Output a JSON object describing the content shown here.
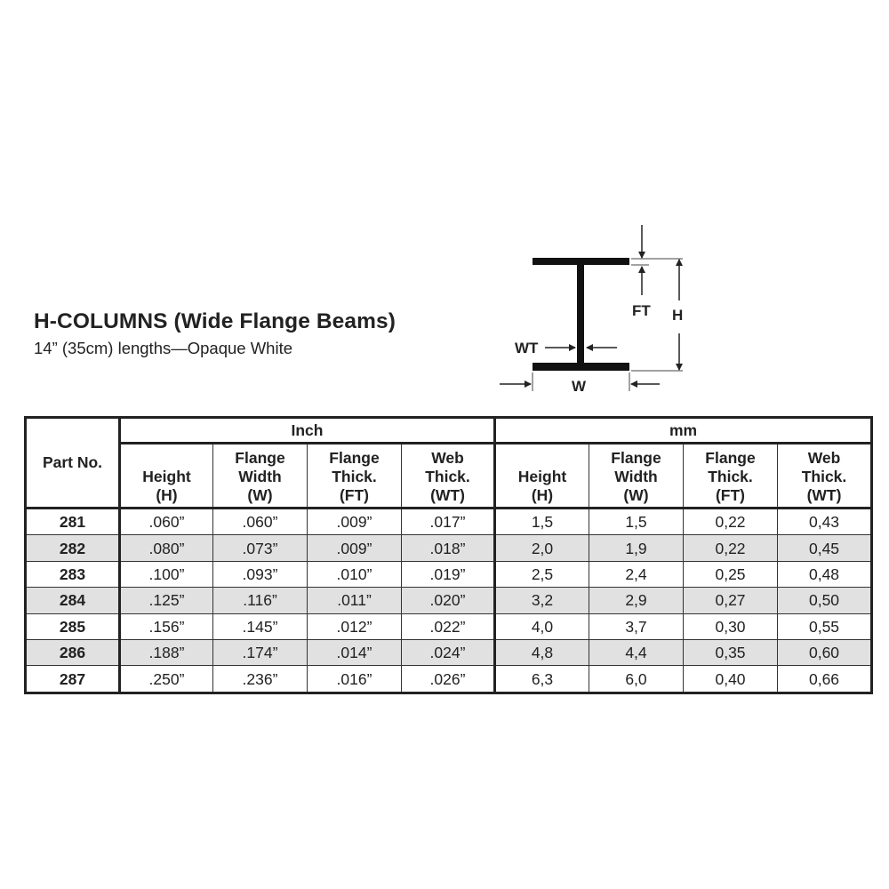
{
  "title": "H-COLUMNS (Wide Flange Beams)",
  "subtitle": "14” (35cm) lengths—Opaque White",
  "diagram": {
    "labels": {
      "ft": "FT",
      "h": "H",
      "wt": "WT",
      "w": "W"
    }
  },
  "table": {
    "part_header": "Part No.",
    "groups": [
      "Inch",
      "mm"
    ],
    "columns": [
      [
        "",
        "Height",
        "(H)"
      ],
      [
        "Flange",
        "Width",
        "(W)"
      ],
      [
        "Flange",
        "Thick.",
        "(FT)"
      ],
      [
        "Web",
        "Thick.",
        "(WT)"
      ]
    ],
    "rows": [
      {
        "part": "281",
        "inch": [
          ".060”",
          ".060”",
          ".009”",
          ".017”"
        ],
        "mm": [
          "1,5",
          "1,5",
          "0,22",
          "0,43"
        ]
      },
      {
        "part": "282",
        "inch": [
          ".080”",
          ".073”",
          ".009”",
          ".018”"
        ],
        "mm": [
          "2,0",
          "1,9",
          "0,22",
          "0,45"
        ]
      },
      {
        "part": "283",
        "inch": [
          ".100”",
          ".093”",
          ".010”",
          ".019”"
        ],
        "mm": [
          "2,5",
          "2,4",
          "0,25",
          "0,48"
        ]
      },
      {
        "part": "284",
        "inch": [
          ".125”",
          ".116”",
          ".011”",
          ".020”"
        ],
        "mm": [
          "3,2",
          "2,9",
          "0,27",
          "0,50"
        ]
      },
      {
        "part": "285",
        "inch": [
          ".156”",
          ".145”",
          ".012”",
          ".022”"
        ],
        "mm": [
          "4,0",
          "3,7",
          "0,30",
          "0,55"
        ]
      },
      {
        "part": "286",
        "inch": [
          ".188”",
          ".174”",
          ".014”",
          ".024”"
        ],
        "mm": [
          "4,8",
          "4,4",
          "0,35",
          "0,60"
        ]
      },
      {
        "part": "287",
        "inch": [
          ".250”",
          ".236”",
          ".016”",
          ".026”"
        ],
        "mm": [
          "6,3",
          "6,0",
          "0,40",
          "0,66"
        ]
      }
    ],
    "alt_row_color": "#e1e1e1"
  }
}
